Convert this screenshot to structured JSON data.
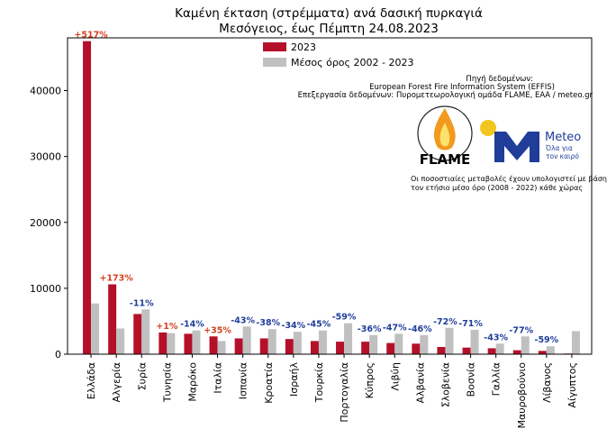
{
  "chart_data": {
    "type": "bar",
    "title": [
      "Καμένη έκταση (στρέμματα) ανά δασική πυρκαγιά",
      "Μεσόγειος, έως Πέμπτη 24.08.2023"
    ],
    "ylim": [
      0,
      48000
    ],
    "yticks": [
      0,
      10000,
      20000,
      30000,
      40000
    ],
    "categories": [
      "Ελλάδα",
      "Αλγερία",
      "Συρία",
      "Τυνησία",
      "Μαρόκο",
      "Ιταλία",
      "Ισπανία",
      "Κροατία",
      "Ισραήλ",
      "Τουρκία",
      "Πορτογαλία",
      "Κύπρος",
      "Λιβύη",
      "Αλβανία",
      "Σλοβενία",
      "Βοσνία",
      "Γαλλία",
      "Μαυροβούνιο",
      "Λίβανος",
      "Αίγυπτος"
    ],
    "series": [
      {
        "name": "2023",
        "color": "#b5102a",
        "values": [
          47500,
          10600,
          6100,
          3300,
          3100,
          2700,
          2400,
          2400,
          2300,
          2000,
          1900,
          1900,
          1700,
          1600,
          1100,
          1000,
          900,
          600,
          500,
          100
        ]
      },
      {
        "name": "Μέσος όρος 2002 - 2023",
        "color": "#c0c0c0",
        "values": [
          7700,
          3900,
          6800,
          3200,
          3600,
          2000,
          4200,
          3800,
          3400,
          3600,
          4700,
          2900,
          3100,
          2900,
          4000,
          3700,
          1600,
          2700,
          1200,
          3500
        ]
      }
    ],
    "changes": [
      "+517%",
      "+173%",
      "-11%",
      "+1%",
      "-14%",
      "+35%",
      "-43%",
      "-38%",
      "-34%",
      "-45%",
      "-59%",
      "-36%",
      "-47%",
      "-46%",
      "-72%",
      "-71%",
      "-43%",
      "-77%",
      "-59%",
      ""
    ],
    "change_colors": {
      "positive": "#d5401f",
      "negative": "#1f3d99"
    },
    "legend_position": "top-center",
    "grid": false
  },
  "source": {
    "line1": "Πηγή δεδομένων:",
    "line2": "European Forest Fire Information System (EFFIS)",
    "line3": "Επεξεργασία δεδομένων: Πυρομετεωρολογική ομάδα FLAME, ΕΑΑ / meteo.gr"
  },
  "logos": {
    "flame": "FLAME",
    "meteo": "Meteo",
    "meteo_sub1": "Όλα για",
    "meteo_sub2": "τον καιρό"
  },
  "note": {
    "line1": "Οι ποσοστιαίες μεταβολές έχουν υπολογιστεί με βάση",
    "line2": "τον ετήσιο μέσο όρο (2008 - 2022) κάθε χώρας"
  }
}
